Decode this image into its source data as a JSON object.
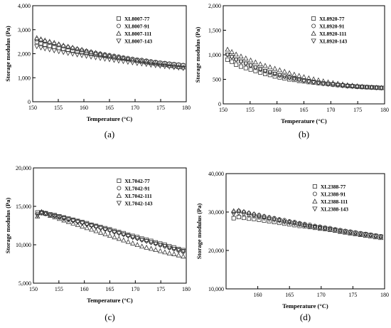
{
  "chart_data": [
    {
      "type": "scatter",
      "panel_label": "(a)",
      "xlabel": "Temperature (°C)",
      "ylabel": "Storage modulus (Pa)",
      "xlim": [
        150,
        180
      ],
      "ylim": [
        0,
        4000
      ],
      "xticks": [
        "150",
        "155",
        "160",
        "165",
        "170",
        "175",
        "180"
      ],
      "yticks": [
        "0",
        "1,000",
        "2,000",
        "3,000",
        "4,000"
      ],
      "legend_position": "top-right",
      "x": [
        150.8,
        151.6,
        152.4,
        153.3,
        154.2,
        155.1,
        156.0,
        156.9,
        157.8,
        158.7,
        159.6,
        160.5,
        161.4,
        162.3,
        163.2,
        164.1,
        165.0,
        165.9,
        166.8,
        167.7,
        168.6,
        169.5,
        170.4,
        171.3,
        172.2,
        173.1,
        174.0,
        174.9,
        175.8,
        176.7,
        177.6,
        178.5,
        179.4
      ],
      "series": [
        {
          "name": "XL8007-77",
          "marker": "square",
          "values": [
            2500,
            2440,
            2380,
            2330,
            2280,
            2240,
            2200,
            2160,
            2120,
            2090,
            2060,
            2030,
            2000,
            1970,
            1940,
            1910,
            1880,
            1850,
            1820,
            1800,
            1770,
            1740,
            1720,
            1700,
            1680,
            1650,
            1630,
            1610,
            1590,
            1570,
            1550,
            1530,
            1510
          ]
        },
        {
          "name": "XL8007-91",
          "marker": "circle",
          "values": [
            2600,
            2560,
            2510,
            2460,
            2410,
            2360,
            2310,
            2270,
            2230,
            2190,
            2150,
            2110,
            2070,
            2030,
            2000,
            1970,
            1940,
            1910,
            1880,
            1850,
            1820,
            1790,
            1760,
            1740,
            1710,
            1680,
            1660,
            1630,
            1610,
            1590,
            1570,
            1550,
            1530
          ]
        },
        {
          "name": "XL8007-111",
          "marker": "triangle-up",
          "values": [
            2660,
            2610,
            2560,
            2510,
            2460,
            2400,
            2350,
            2300,
            2260,
            2210,
            2170,
            2120,
            2080,
            2040,
            2000,
            1960,
            1920,
            1880,
            1850,
            1810,
            1780,
            1740,
            1710,
            1680,
            1650,
            1620,
            1590,
            1560,
            1540,
            1510,
            1490,
            1460,
            1440
          ]
        },
        {
          "name": "XL8007-143",
          "marker": "triangle-down",
          "values": [
            2300,
            2250,
            2210,
            2170,
            2130,
            2090,
            2060,
            2020,
            1990,
            1960,
            1930,
            1900,
            1870,
            1840,
            1810,
            1780,
            1760,
            1730,
            1700,
            1680,
            1650,
            1630,
            1600,
            1580,
            1560,
            1530,
            1510,
            1490,
            1470,
            1450,
            1430,
            1410,
            1390
          ]
        }
      ]
    },
    {
      "type": "scatter",
      "panel_label": "(b)",
      "xlabel": "Temperature (°C)",
      "ylabel": "Storage modulus (Pa)",
      "xlim": [
        150,
        180
      ],
      "ylim": [
        0,
        2000
      ],
      "xticks": [
        "150",
        "155",
        "160",
        "165",
        "170",
        "175",
        "180"
      ],
      "yticks": [
        "0",
        "500",
        "1,000",
        "1,500",
        "2,000"
      ],
      "legend_position": "top-right",
      "x": [
        150.8,
        151.6,
        152.4,
        153.3,
        154.2,
        155.1,
        156.0,
        156.9,
        157.8,
        158.7,
        159.6,
        160.5,
        161.4,
        162.3,
        163.2,
        164.1,
        165.0,
        165.9,
        166.8,
        167.7,
        168.6,
        169.5,
        170.4,
        171.3,
        172.2,
        173.1,
        174.0,
        174.9,
        175.8,
        176.7,
        177.6,
        178.5,
        179.4
      ],
      "series": [
        {
          "name": "XL8920-77",
          "marker": "square",
          "values": [
            900,
            860,
            800,
            760,
            730,
            700,
            670,
            640,
            610,
            590,
            560,
            540,
            520,
            500,
            490,
            470,
            460,
            445,
            435,
            425,
            415,
            405,
            395,
            385,
            375,
            365,
            360,
            350,
            345,
            340,
            335,
            330,
            325
          ]
        },
        {
          "name": "XL8920-91",
          "marker": "circle",
          "values": [
            1000,
            960,
            900,
            860,
            820,
            780,
            740,
            700,
            670,
            640,
            610,
            585,
            560,
            540,
            520,
            500,
            480,
            465,
            450,
            435,
            420,
            410,
            400,
            390,
            380,
            370,
            360,
            355,
            345,
            340,
            335,
            330,
            325
          ]
        },
        {
          "name": "XL8920-111",
          "marker": "triangle-up",
          "values": [
            1110,
            1060,
            1010,
            970,
            930,
            890,
            850,
            810,
            780,
            750,
            720,
            690,
            660,
            630,
            600,
            575,
            550,
            525,
            505,
            485,
            465,
            445,
            430,
            415,
            400,
            385,
            375,
            365,
            355,
            345,
            340,
            335,
            330
          ]
        },
        {
          "name": "XL8920-143",
          "marker": "triangle-down",
          "values": [
            1000,
            950,
            900,
            860,
            820,
            780,
            740,
            705,
            670,
            640,
            610,
            580,
            555,
            530,
            510,
            490,
            470,
            455,
            440,
            425,
            410,
            400,
            390,
            380,
            370,
            360,
            355,
            350,
            345,
            340,
            335,
            330,
            325
          ]
        }
      ]
    },
    {
      "type": "scatter",
      "panel_label": "(c)",
      "xlabel": "Temperature (°C)",
      "ylabel": "Storage modulus (Pa)",
      "xlim": [
        150,
        180
      ],
      "ylim": [
        5000,
        20000
      ],
      "xticks": [
        "150",
        "155",
        "160",
        "165",
        "170",
        "175",
        "180"
      ],
      "yticks": [
        "5,000",
        "10,000",
        "15,000",
        "20,000"
      ],
      "legend_position": "top-right",
      "x": [
        150.8,
        151.6,
        152.4,
        153.3,
        154.2,
        155.1,
        156.0,
        156.9,
        157.8,
        158.7,
        159.6,
        160.5,
        161.4,
        162.3,
        163.2,
        164.1,
        165.0,
        165.9,
        166.8,
        167.7,
        168.6,
        169.5,
        170.4,
        171.3,
        172.2,
        173.1,
        174.0,
        174.9,
        175.8,
        176.7,
        177.6,
        178.5,
        179.4
      ],
      "series": [
        {
          "name": "XL7042-77",
          "marker": "square",
          "values": [
            14200,
            14150,
            14050,
            13950,
            13850,
            13700,
            13550,
            13400,
            13250,
            13100,
            12950,
            12800,
            12600,
            12450,
            12300,
            12150,
            12000,
            11800,
            11650,
            11500,
            11300,
            11150,
            11000,
            10800,
            10650,
            10500,
            10300,
            10150,
            10000,
            9800,
            9650,
            9450,
            9300
          ]
        },
        {
          "name": "XL7042-91",
          "marker": "circle",
          "values": [
            14000,
            14100,
            14000,
            13900,
            13800,
            13650,
            13500,
            13350,
            13200,
            13050,
            12900,
            12700,
            12550,
            12400,
            12250,
            12050,
            11900,
            11700,
            11550,
            11350,
            11200,
            11000,
            10850,
            10650,
            10500,
            10300,
            10150,
            9950,
            9800,
            9600,
            9450,
            9250,
            9100
          ]
        },
        {
          "name": "XL7042-111",
          "marker": "triangle-up",
          "values": [
            13700,
            14300,
            14100,
            13800,
            13600,
            13400,
            13200,
            13000,
            12800,
            12600,
            12400,
            12200,
            12000,
            11800,
            11600,
            11400,
            11200,
            11000,
            10800,
            10600,
            10400,
            10200,
            10000,
            9800,
            9650,
            9500,
            9350,
            9200,
            9050,
            8900,
            8800,
            8650,
            8500
          ]
        },
        {
          "name": "XL7042-143",
          "marker": "triangle-down",
          "values": [
            13800,
            14200,
            14100,
            13900,
            13700,
            13550,
            13400,
            13250,
            13100,
            12950,
            12800,
            12600,
            12450,
            12300,
            12100,
            11950,
            11800,
            11600,
            11450,
            11300,
            11100,
            10950,
            10800,
            10600,
            10450,
            10300,
            10100,
            9950,
            9800,
            9600,
            9450,
            9300,
            9150
          ]
        }
      ]
    },
    {
      "type": "scatter",
      "panel_label": "(d)",
      "xlabel": "Temperature (°C)",
      "ylabel": "Storage modulus (Pa)",
      "xlim": [
        155,
        180
      ],
      "ylim": [
        10000,
        40000
      ],
      "xticks": [
        "160",
        "165",
        "170",
        "175",
        "180"
      ],
      "yticks": [
        "10,000",
        "20,000",
        "30,000",
        "40,000"
      ],
      "legend_position": "top-right",
      "x": [
        156.2,
        157.0,
        157.8,
        158.6,
        159.4,
        160.2,
        161.0,
        161.8,
        162.6,
        163.4,
        164.2,
        165.0,
        165.8,
        166.6,
        167.4,
        168.2,
        169.0,
        169.8,
        170.6,
        171.4,
        172.2,
        173.0,
        173.8,
        174.6,
        175.4,
        176.2,
        177.0,
        177.8,
        178.6,
        179.4
      ],
      "series": [
        {
          "name": "XL2388-77",
          "marker": "square",
          "values": [
            28400,
            28700,
            28500,
            28300,
            28200,
            28000,
            27800,
            27600,
            27400,
            27200,
            27000,
            26800,
            26600,
            26400,
            26300,
            26100,
            25900,
            25700,
            25600,
            25400,
            25200,
            25000,
            24900,
            24700,
            24500,
            24300,
            24200,
            24000,
            23800,
            23600
          ]
        },
        {
          "name": "XL2388-91",
          "marker": "circle",
          "values": [
            30000,
            30300,
            30000,
            29700,
            29400,
            29200,
            28900,
            28600,
            28400,
            28100,
            27900,
            27600,
            27400,
            27100,
            26900,
            26700,
            26400,
            26200,
            26000,
            25800,
            25500,
            25300,
            25100,
            24900,
            24700,
            24500,
            24300,
            24100,
            23900,
            23700
          ]
        },
        {
          "name": "XL2388-111",
          "marker": "triangle-up",
          "values": [
            30300,
            30400,
            30100,
            29800,
            29500,
            29200,
            28900,
            28600,
            28300,
            28000,
            27700,
            27500,
            27200,
            26900,
            26700,
            26400,
            26200,
            25900,
            25700,
            25400,
            25200,
            24900,
            24700,
            24500,
            24300,
            24100,
            23900,
            23700,
            23500,
            23300
          ]
        },
        {
          "name": "XL2388-143",
          "marker": "triangle-down",
          "values": [
            29500,
            29700,
            29400,
            29100,
            28900,
            28600,
            28400,
            28100,
            27900,
            27700,
            27400,
            27200,
            27000,
            26800,
            26500,
            26300,
            26100,
            25900,
            25700,
            25500,
            25300,
            25100,
            24900,
            24700,
            24500,
            24300,
            24100,
            23900,
            23700,
            23500
          ]
        }
      ]
    }
  ]
}
